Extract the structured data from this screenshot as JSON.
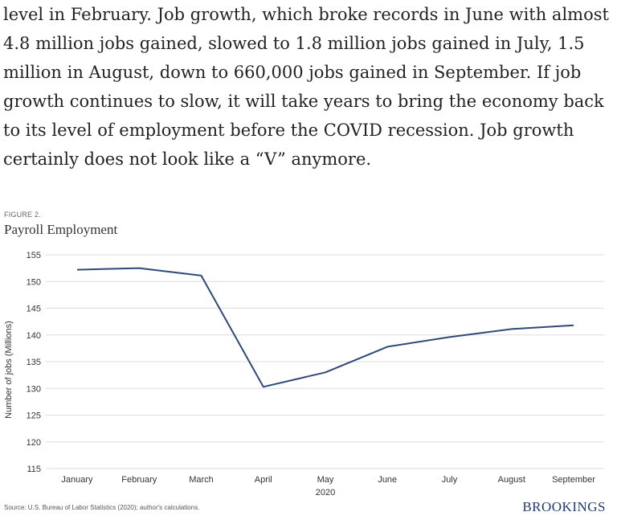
{
  "article": {
    "paragraph": "level in February. Job growth, which broke records in June with almost 4.8 million jobs gained, slowed to 1.8 million jobs gained in July, 1.5 million in August, down to 660,000 jobs gained in September. If job growth continues to slow, it will take years to bring the economy back to its level of employment before the COVID recession. Job growth certainly does not look like a “V” anymore."
  },
  "figure": {
    "label": "FIGURE 2.",
    "source": "Source: U.S. Bureau of Labor Statistics (2020); author's calculations.",
    "brand": "BROOKINGS"
  },
  "colors": {
    "line": "#2e4a78",
    "grid": "#dddddd",
    "brand": "#1f3b6e"
  },
  "chart_data": {
    "type": "line",
    "title": "Payroll Employment",
    "xlabel": "2020",
    "ylabel": "Number of jobs (Millions)",
    "categories": [
      "January",
      "February",
      "March",
      "April",
      "May",
      "June",
      "July",
      "August",
      "September"
    ],
    "series": [
      {
        "values": [
          152.2,
          152.5,
          151.1,
          130.3,
          133.0,
          137.8,
          139.6,
          141.1,
          141.8
        ]
      }
    ],
    "ylim": [
      115,
      155
    ],
    "yticks": [
      115,
      120,
      125,
      130,
      135,
      140,
      145,
      150,
      155
    ],
    "grid": true,
    "legend": "none"
  }
}
